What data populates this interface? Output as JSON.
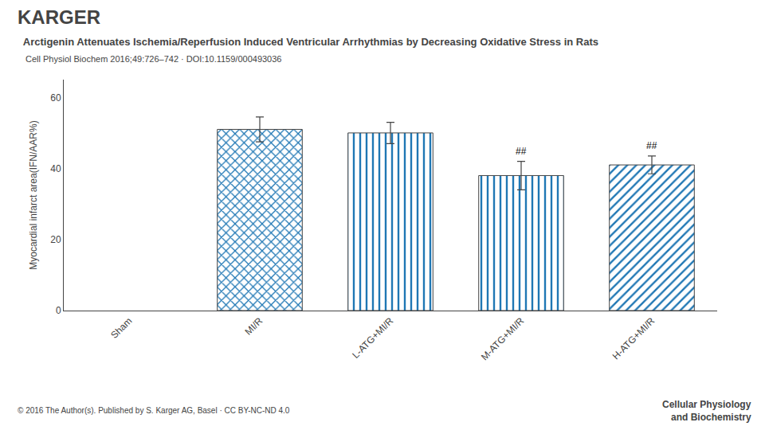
{
  "chart_data": {
    "type": "bar",
    "title": "Arctigenin Attenuates Ischemia/Reperfusion Induced Ventricular Arrhythmias by Decreasing Oxidative Stress in Rats",
    "subtitle": "Cell Physiol Biochem 2016;49:726–742 · DOI:10.1159/000493036",
    "categories": [
      "Sham",
      "MI/R",
      "L-ATG+MI/R",
      "M-ATG+MI/R",
      "H-ATG+MI/R"
    ],
    "values": [
      null,
      51,
      50,
      38,
      41
    ],
    "errors": [
      null,
      3.5,
      3.0,
      4.0,
      2.5
    ],
    "ylabel": "Myocardial infarct area(IFN/AAR%)",
    "ylim": [
      0,
      65
    ],
    "yticks": [
      0,
      20,
      40,
      60
    ],
    "grid": false,
    "annotations": [
      {
        "text": "KARGER"
      },
      {
        "text": "© 2016 The Author(s). Published by S. Karger AG, Basel · CC BY-NC-ND 4.0"
      },
      {
        "text": "Cellular Physiology"
      },
      {
        "text": "and Biochemistry"
      },
      {
        "text": "##",
        "x": "M-ATG+MI/R"
      },
      {
        "text": "##",
        "x": "H-ATG+MI/R"
      }
    ]
  }
}
